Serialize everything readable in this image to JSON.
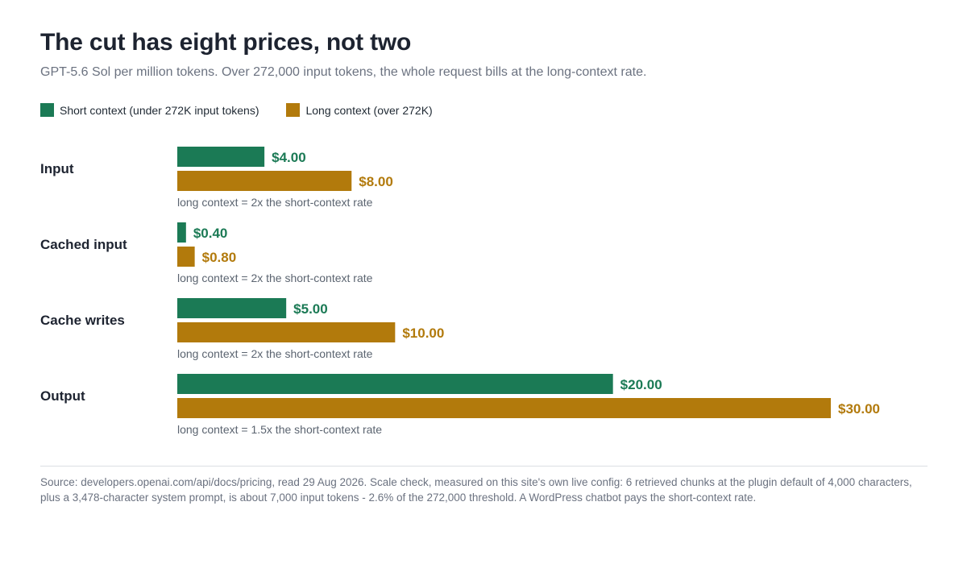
{
  "title": "The cut has eight prices, not two",
  "subtitle": "GPT-5.6 Sol per million tokens. Over 272,000 input tokens, the whole request bills at the long-context rate.",
  "legend": {
    "short_label": "Short context (under 272K input tokens)",
    "long_label": "Long context (over 272K)"
  },
  "colors": {
    "short": "#1b7a55",
    "long": "#b27a0c"
  },
  "chart_data": {
    "type": "bar",
    "orientation": "horizontal",
    "title": "The cut has eight prices, not two",
    "subtitle": "GPT-5.6 Sol per million tokens. Over 272,000 input tokens, the whole request bills at the long-context rate.",
    "xlim": [
      0,
      30
    ],
    "grid": false,
    "legend_position": "top-left",
    "categories": [
      "Input",
      "Cached input",
      "Cache writes",
      "Output"
    ],
    "series": [
      {
        "name": "Short context (under 272K input tokens)",
        "values": [
          4.0,
          0.4,
          5.0,
          20.0
        ],
        "labels": [
          "$4.00",
          "$0.40",
          "$5.00",
          "$20.00"
        ]
      },
      {
        "name": "Long context (over 272K)",
        "values": [
          8.0,
          0.8,
          10.0,
          30.0
        ],
        "labels": [
          "$8.00",
          "$0.80",
          "$10.00",
          "$30.00"
        ]
      }
    ],
    "annotations": [
      "long context = 2x the short-context rate",
      "long context = 2x the short-context rate",
      "long context = 2x the short-context rate",
      "long context = 1.5x the short-context rate"
    ]
  },
  "source": "Source: developers.openai.com/api/docs/pricing, read 29 Aug 2026. Scale check, measured on this site's own live config: 6 retrieved chunks at the plugin default of 4,000 characters, plus a 3,478-character system prompt, is about 7,000 input tokens - 2.6% of the 272,000 threshold. A WordPress chatbot pays the short-context rate."
}
